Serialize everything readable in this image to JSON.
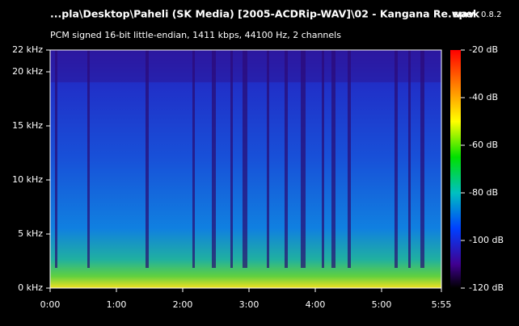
{
  "header": {
    "file": "...pla\\Desktop\\Paheli (SK Media) [2005-ACDRip-WAV]\\02 - Kangana Re.wav",
    "app": "spek",
    "version": "0.8.2",
    "info": "PCM signed 16-bit little-endian, 1411 kbps, 44100 Hz, 2 channels"
  },
  "frequency_axis": {
    "ticks": [
      "22 kHz",
      "20 kHz",
      "15 kHz",
      "10 kHz",
      "5 kHz",
      "0 kHz"
    ]
  },
  "time_axis": {
    "ticks": [
      "0:00",
      "1:00",
      "2:00",
      "3:00",
      "4:00",
      "5:00",
      "5:55"
    ]
  },
  "level_axis": {
    "ticks": [
      "-20 dB",
      "-40 dB",
      "-60 dB",
      "-80 dB",
      "-100 dB",
      "-120 dB"
    ]
  }
}
